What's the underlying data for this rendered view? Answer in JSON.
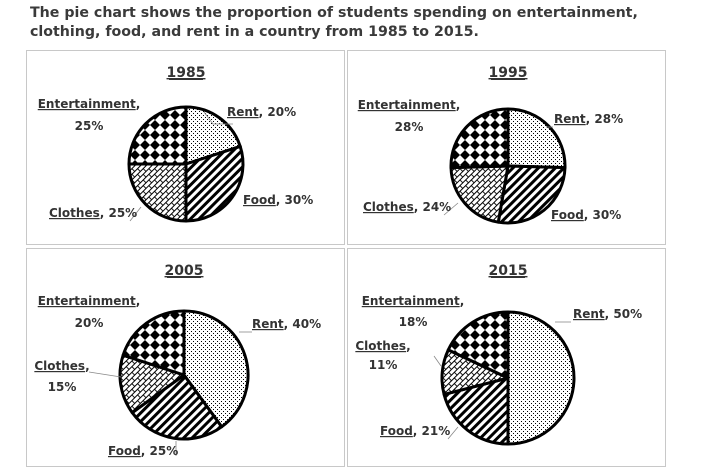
{
  "heading": {
    "line1": "The pie chart shows the proportion of students spending on entertainment,",
    "line2": "clothing, food, and rent in a country from 1985 to 2015."
  },
  "chart_data": [
    {
      "type": "pie",
      "title": "1985",
      "slices": [
        {
          "label": "Rent",
          "value": 20,
          "text": ", 20%"
        },
        {
          "label": "Food",
          "value": 30,
          "text": ", 30%"
        },
        {
          "label": "Clothes",
          "value": 25,
          "text": ", 25%"
        },
        {
          "label": "Entertainment",
          "value": 25,
          "text": ",",
          "text2": "25%"
        }
      ]
    },
    {
      "type": "pie",
      "title": "1995",
      "slices": [
        {
          "label": "Rent",
          "value": 28,
          "text": ", 28%"
        },
        {
          "label": "Food",
          "value": 30,
          "text": ", 30%"
        },
        {
          "label": "Clothes",
          "value": 24,
          "text": ", 24%"
        },
        {
          "label": "Entertainment",
          "value": 28,
          "text": ",",
          "text2": "28%"
        }
      ]
    },
    {
      "type": "pie",
      "title": "2005",
      "slices": [
        {
          "label": "Rent",
          "value": 40,
          "text": ", 40%"
        },
        {
          "label": "Food",
          "value": 25,
          "text": ", 25%"
        },
        {
          "label": "Clothes",
          "value": 15,
          "text": ",",
          "text2": "15%"
        },
        {
          "label": "Entertainment",
          "value": 20,
          "text": ",",
          "text2": "20%"
        }
      ]
    },
    {
      "type": "pie",
      "title": "2015",
      "slices": [
        {
          "label": "Rent",
          "value": 50,
          "text": ", 50%"
        },
        {
          "label": "Food",
          "value": 21,
          "text": ", 21%"
        },
        {
          "label": "Clothes",
          "value": 11,
          "text": ",",
          "text2": "11%"
        },
        {
          "label": "Entertainment",
          "value": 18,
          "text": ",",
          "text2": "18%"
        }
      ]
    }
  ],
  "colors": {
    "ink": "#000000",
    "label": "#333333",
    "frame": "#c8c8c8"
  }
}
